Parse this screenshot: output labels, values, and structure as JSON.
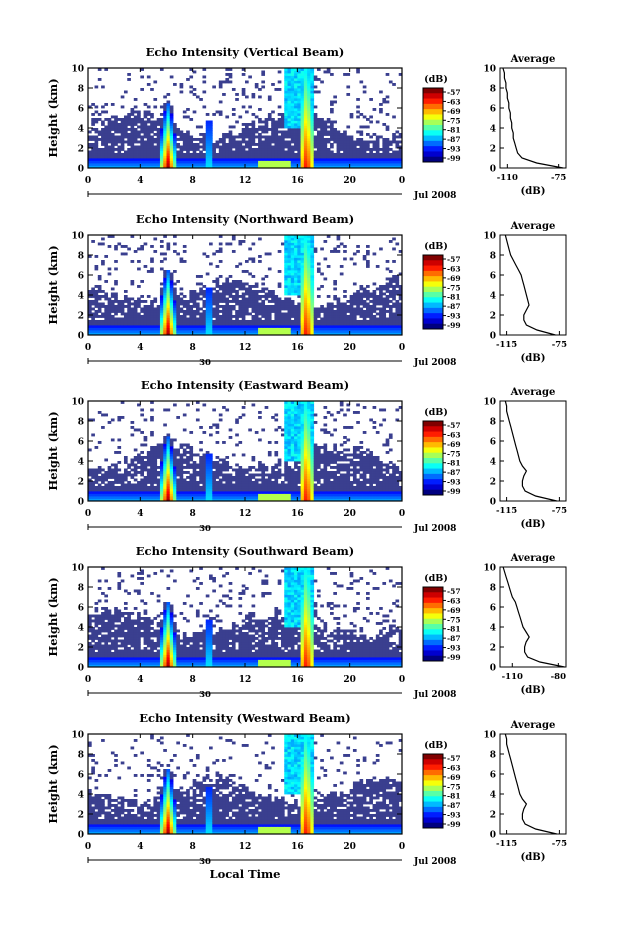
{
  "chart_data": [
    {
      "type": "heatmap",
      "title": "Echo Intensity (Vertical Beam)",
      "ylabel": "Height (km)",
      "xticks": [
        "0",
        "4",
        "8",
        "12",
        "16",
        "20",
        "0"
      ],
      "ylim": [
        0,
        10
      ],
      "yticks": [
        "0",
        "2",
        "4",
        "6",
        "8",
        "10"
      ],
      "date_label": "Jul 2008",
      "date_day": "",
      "colorbar": {
        "unit": "(dB)",
        "ticks": [
          "-57",
          "-63",
          "-69",
          "-75",
          "-81",
          "-87",
          "-93",
          "-99"
        ]
      },
      "average": {
        "title": "Average",
        "xlabel": "(dB)",
        "xticks": [
          "-110",
          "-75"
        ],
        "xlim": [
          -115,
          -70
        ],
        "height": [
          0,
          0.5,
          1,
          1.5,
          2,
          2.5,
          3,
          3.5,
          4,
          4.5,
          5,
          5.5,
          6,
          6.5,
          7,
          7.5,
          8,
          8.5,
          9,
          9.5,
          10
        ],
        "db": [
          -72,
          -90,
          -100,
          -103,
          -104,
          -105,
          -106,
          -106,
          -107,
          -107,
          -108,
          -108,
          -109,
          -109,
          -110,
          -110,
          -111,
          -111,
          -112,
          -112,
          -113
        ]
      }
    },
    {
      "type": "heatmap",
      "title": "Echo Intensity (Northward Beam)",
      "ylabel": "Height (km)",
      "xticks": [
        "0",
        "4",
        "8",
        "12",
        "16",
        "20",
        "0"
      ],
      "ylim": [
        0,
        10
      ],
      "yticks": [
        "0",
        "2",
        "4",
        "6",
        "8",
        "10"
      ],
      "date_label": "Jul 2008",
      "date_day": "30",
      "colorbar": {
        "unit": "(dB)",
        "ticks": [
          "-57",
          "-63",
          "-69",
          "-75",
          "-81",
          "-87",
          "-93",
          "-99"
        ]
      },
      "average": {
        "title": "Average",
        "xlabel": "(dB)",
        "xticks": [
          "-115",
          "-75"
        ],
        "xlim": [
          -120,
          -70
        ],
        "height": [
          0,
          0.5,
          1,
          1.5,
          2,
          2.5,
          3,
          3.5,
          4,
          4.5,
          5,
          5.5,
          6,
          6.5,
          7,
          7.5,
          8,
          8.5,
          9,
          9.5,
          10
        ],
        "db": [
          -78,
          -92,
          -100,
          -102,
          -102,
          -100,
          -98,
          -99,
          -100,
          -101,
          -102,
          -103,
          -104,
          -106,
          -108,
          -110,
          -112,
          -113,
          -114,
          -115,
          -116
        ]
      }
    },
    {
      "type": "heatmap",
      "title": "Echo Intensity (Eastward Beam)",
      "ylabel": "Height (km)",
      "xticks": [
        "0",
        "4",
        "8",
        "12",
        "16",
        "20",
        "0"
      ],
      "ylim": [
        0,
        10
      ],
      "yticks": [
        "0",
        "2",
        "4",
        "6",
        "8",
        "10"
      ],
      "date_label": "Jul 2008",
      "date_day": "30",
      "colorbar": {
        "unit": "(dB)",
        "ticks": [
          "-57",
          "-63",
          "-69",
          "-75",
          "-81",
          "-87",
          "-93",
          "-99"
        ]
      },
      "average": {
        "title": "Average",
        "xlabel": "(dB)",
        "xticks": [
          "-115",
          "-75"
        ],
        "xlim": [
          -120,
          -70
        ],
        "height": [
          0,
          0.5,
          1,
          1.5,
          2,
          2.5,
          3,
          3.5,
          4,
          4.5,
          5,
          5.5,
          6,
          6.5,
          7,
          7.5,
          8,
          8.5,
          9,
          9.5,
          10
        ],
        "db": [
          -77,
          -93,
          -101,
          -103,
          -103,
          -102,
          -100,
          -103,
          -105,
          -106,
          -107,
          -108,
          -109,
          -110,
          -111,
          -112,
          -113,
          -114,
          -115,
          -115,
          -116
        ]
      }
    },
    {
      "type": "heatmap",
      "title": "Echo Intensity (Southward Beam)",
      "ylabel": "Height (km)",
      "xticks": [
        "0",
        "4",
        "8",
        "12",
        "16",
        "20",
        "0"
      ],
      "ylim": [
        0,
        10
      ],
      "yticks": [
        "0",
        "2",
        "4",
        "6",
        "8",
        "10"
      ],
      "date_label": "Jul 2008",
      "date_day": "30",
      "colorbar": {
        "unit": "(dB)",
        "ticks": [
          "-57",
          "-63",
          "-69",
          "-75",
          "-81",
          "-87",
          "-93",
          "-99"
        ]
      },
      "average": {
        "title": "Average",
        "xlabel": "(dB)",
        "xticks": [
          "-110",
          "-80"
        ],
        "xlim": [
          -118,
          -75
        ],
        "height": [
          0,
          0.5,
          1,
          1.5,
          2,
          2.5,
          3,
          3.5,
          4,
          4.5,
          5,
          5.5,
          6,
          6.5,
          7,
          7.5,
          8,
          8.5,
          9,
          9.5,
          10
        ],
        "db": [
          -76,
          -92,
          -100,
          -102,
          -102,
          -101,
          -99,
          -101,
          -103,
          -104,
          -105,
          -106,
          -107,
          -108,
          -110,
          -111,
          -112,
          -113,
          -114,
          -115,
          -116
        ]
      }
    },
    {
      "type": "heatmap",
      "title": "Echo Intensity (Westward Beam)",
      "ylabel": "Height (km)",
      "xticks": [
        "0",
        "4",
        "8",
        "12",
        "16",
        "20",
        "0"
      ],
      "ylim": [
        0,
        10
      ],
      "yticks": [
        "0",
        "2",
        "4",
        "6",
        "8",
        "10"
      ],
      "date_label": "Jul 2008",
      "date_day": "30",
      "xlabel": "Local Time",
      "colorbar": {
        "unit": "(dB)",
        "ticks": [
          "-57",
          "-63",
          "-69",
          "-75",
          "-81",
          "-87",
          "-93",
          "-99"
        ]
      },
      "average": {
        "title": "Average",
        "xlabel": "(dB)",
        "xticks": [
          "-115",
          "-75"
        ],
        "xlim": [
          -120,
          -70
        ],
        "height": [
          0,
          0.5,
          1,
          1.5,
          2,
          2.5,
          3,
          3.5,
          4,
          4.5,
          5,
          5.5,
          6,
          6.5,
          7,
          7.5,
          8,
          8.5,
          9,
          9.5,
          10
        ],
        "db": [
          -77,
          -93,
          -101,
          -103,
          -103,
          -102,
          -100,
          -103,
          -105,
          -106,
          -107,
          -108,
          -109,
          -110,
          -111,
          -112,
          -113,
          -114,
          -115,
          -115,
          -116
        ]
      }
    }
  ]
}
